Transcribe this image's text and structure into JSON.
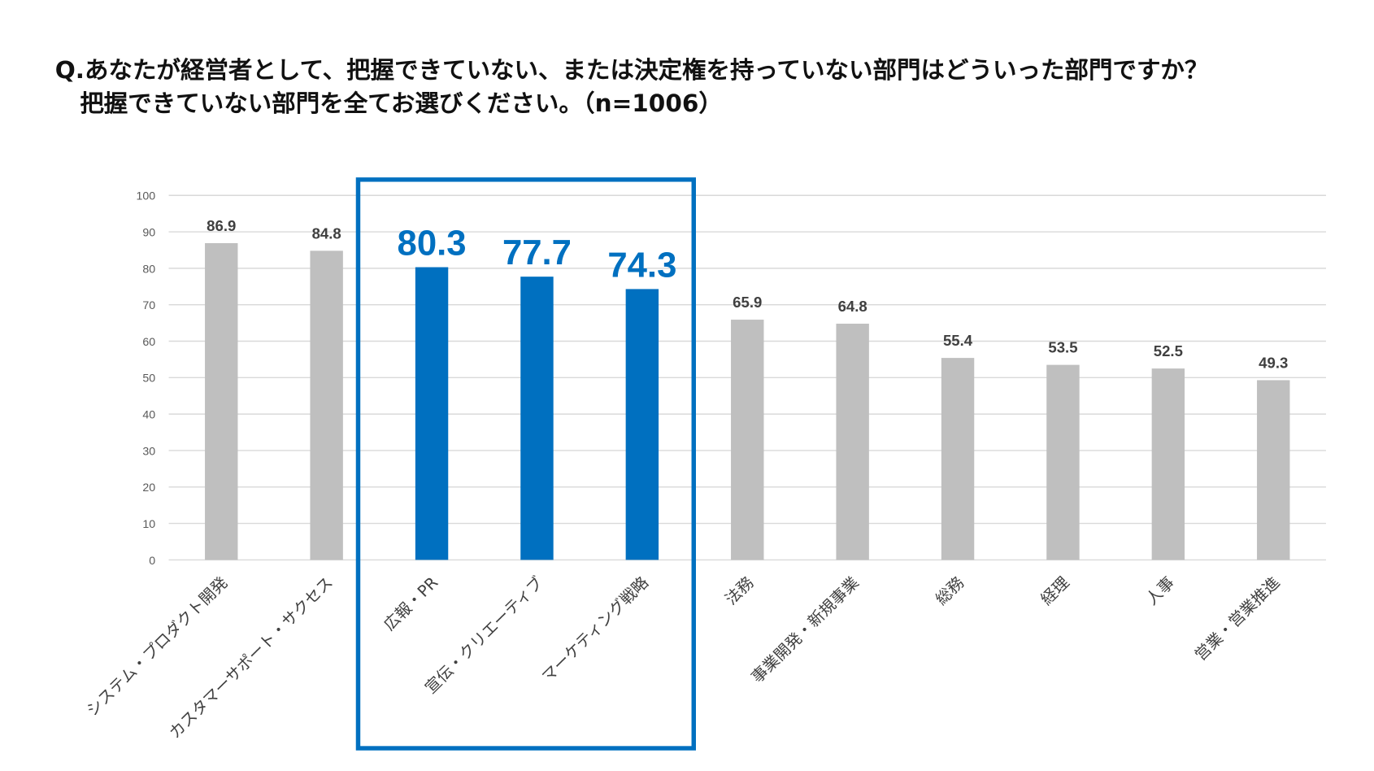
{
  "title": {
    "line1": "Q.あなたが経営者として、把握できていない、または決定権を持っていない部門はどういった部門ですか？",
    "line2": "把握できていない部門を全てお選びください。（n=1006）"
  },
  "chart_data": {
    "type": "bar",
    "categories": [
      "システム・プロダクト開発",
      "カスタマーサポート・サクセス",
      "広報・PR",
      "宣伝・クリエーティブ",
      "マーケティング戦略",
      "法務",
      "事業開発・新規事業",
      "総務",
      "経理",
      "人事",
      "営業・営業推進"
    ],
    "values": [
      86.9,
      84.8,
      80.3,
      77.7,
      74.3,
      65.9,
      64.8,
      55.4,
      53.5,
      52.5,
      49.3
    ],
    "value_labels": [
      "86.9",
      "84.8",
      "80.3",
      "77.7",
      "74.3",
      "65.9",
      "64.8",
      "55.4",
      "53.5",
      "52.5",
      "49.3"
    ],
    "highlighted": [
      2,
      3,
      4
    ],
    "ylim": [
      0,
      100
    ],
    "yticks": [
      0,
      10,
      20,
      30,
      40,
      50,
      60,
      70,
      80,
      90,
      100
    ],
    "grid": true,
    "colors": {
      "bar_default": "#bfbfbf",
      "bar_highlight": "#0070c0",
      "highlight_box": "#0070c0",
      "gridline": "#d9d9d9"
    }
  }
}
